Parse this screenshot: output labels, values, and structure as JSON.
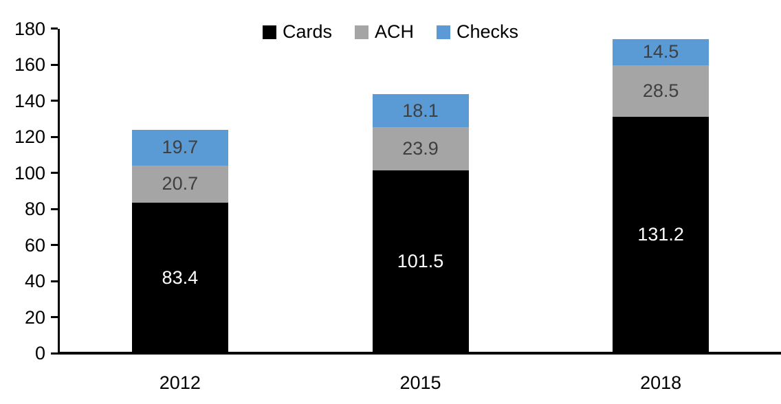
{
  "chart_data": {
    "type": "bar",
    "stacked": true,
    "title": "",
    "xlabel": "",
    "ylabel": "",
    "categories": [
      "2012",
      "2015",
      "2018"
    ],
    "series": [
      {
        "name": "Cards",
        "color": "#000000",
        "label_color": "#FFFFFF",
        "values": [
          83.4,
          101.5,
          131.2
        ]
      },
      {
        "name": "ACH",
        "color": "#A5A5A5",
        "label_color": "#3F3F3F",
        "values": [
          20.7,
          23.9,
          28.5
        ]
      },
      {
        "name": "Checks",
        "color": "#5B9BD5",
        "label_color": "#3F3F3F",
        "values": [
          19.7,
          18.1,
          14.5
        ]
      }
    ],
    "totals": [
      123.8,
      143.5,
      174.2
    ],
    "ylim": [
      0,
      180
    ],
    "ytick_step": 20,
    "ytick_labels": [
      "0",
      "20",
      "40",
      "60",
      "80",
      "100",
      "120",
      "140",
      "160",
      "180"
    ],
    "grid": false,
    "legend_position": "top-center",
    "axis_color": "#000000",
    "background_color": "#FFFFFF"
  }
}
